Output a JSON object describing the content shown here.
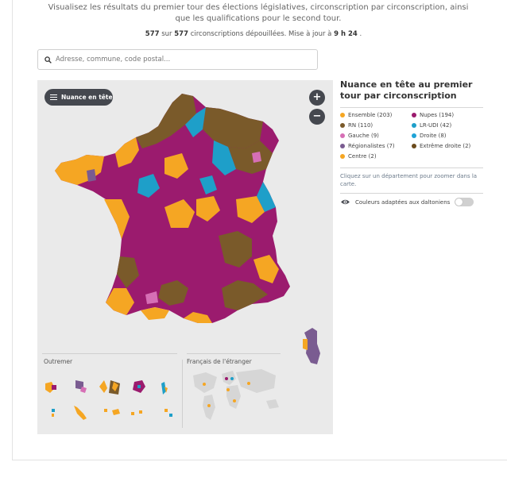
{
  "intro": "Visualisez les résultats du premier tour des élections législatives, circonscription par circonscription, ainsi que les qualifications pour le second tour.",
  "status": {
    "counted": "577",
    "sep": " sur ",
    "total": "577",
    "text": " circonscriptions dépouillées. Mise à jour à ",
    "time": "9 h 24",
    "end": " ."
  },
  "search": {
    "placeholder": "Adresse, commune, code postal..."
  },
  "map": {
    "nuance_button": "Nuance en tête",
    "zoom_in": "+",
    "zoom_out": "−",
    "outremer_label": "Outremer",
    "abroad_label": "Français de l'étranger"
  },
  "legend": {
    "title": "Nuance en tête au premier tour par circonscription",
    "items": [
      {
        "label": "Ensemble (203)",
        "color": "#f5a623"
      },
      {
        "label": "Nupes (194)",
        "color": "#9b1b6e"
      },
      {
        "label": "RN (110)",
        "color": "#7a5a2a"
      },
      {
        "label": "LR-UDI (42)",
        "color": "#1e9fc9"
      },
      {
        "label": "Gauche (9)",
        "color": "#d66fb5"
      },
      {
        "label": "Droite (8)",
        "color": "#1fa3d6"
      },
      {
        "label": "Régionalistes (7)",
        "color": "#7a5c91"
      },
      {
        "label": "Extrême droite (2)",
        "color": "#6b4a1c"
      },
      {
        "label": "Centre (2)",
        "color": "#f5a623"
      }
    ],
    "hint": "Cliquez sur un département pour zoomer dans la carte.",
    "daltonian_label": "Couleurs adaptées aux daltoniens"
  }
}
